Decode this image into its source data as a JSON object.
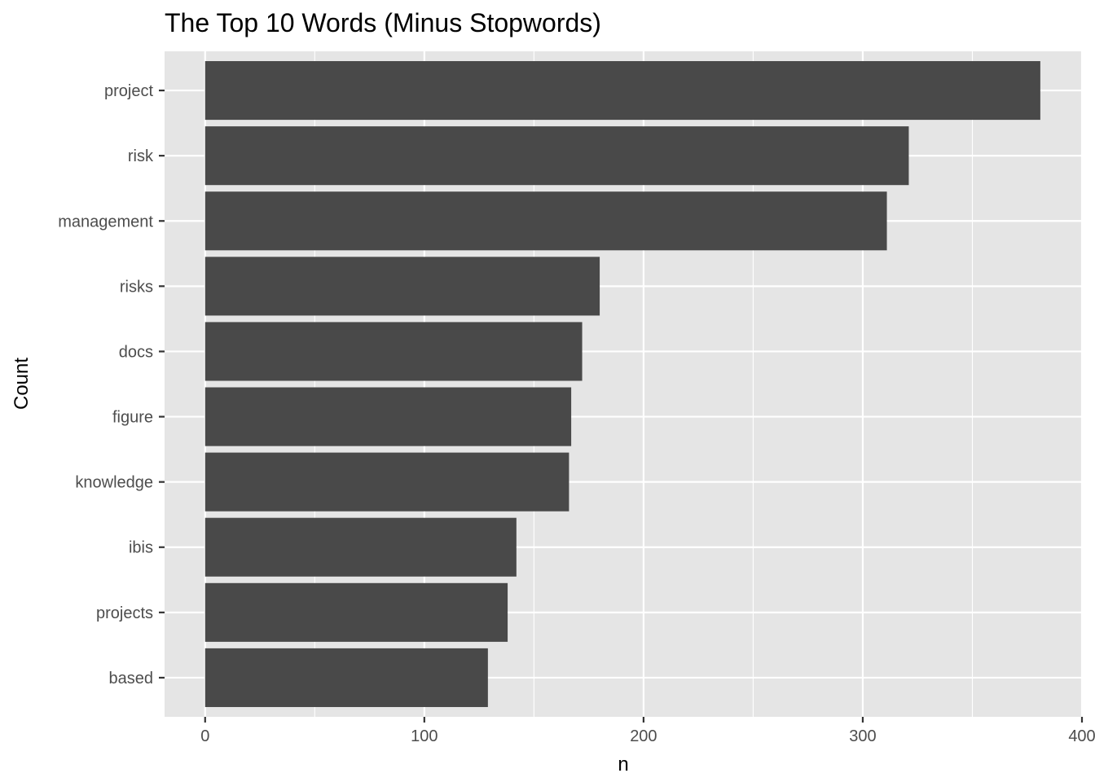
{
  "chart_data": {
    "type": "bar",
    "orientation": "horizontal",
    "title": "The Top 10 Words (Minus Stopwords)",
    "xlabel": "n",
    "ylabel": "Count",
    "categories": [
      "project",
      "risk",
      "management",
      "risks",
      "docs",
      "figure",
      "knowledge",
      "ibis",
      "projects",
      "based"
    ],
    "values": [
      381,
      321,
      311,
      180,
      172,
      167,
      166,
      142,
      138,
      129
    ],
    "xlim": [
      -18.5,
      400
    ],
    "xticks": [
      0,
      100,
      200,
      300,
      400
    ],
    "xtick_labels": [
      "0",
      "100",
      "200",
      "300",
      "400"
    ],
    "grid": true,
    "legend": "none",
    "colors": {
      "bar": "#494949",
      "panel": "#e5e5e5",
      "grid": "#ffffff",
      "tick_text": "#4d4d4d",
      "tick_mark": "#333333"
    }
  }
}
